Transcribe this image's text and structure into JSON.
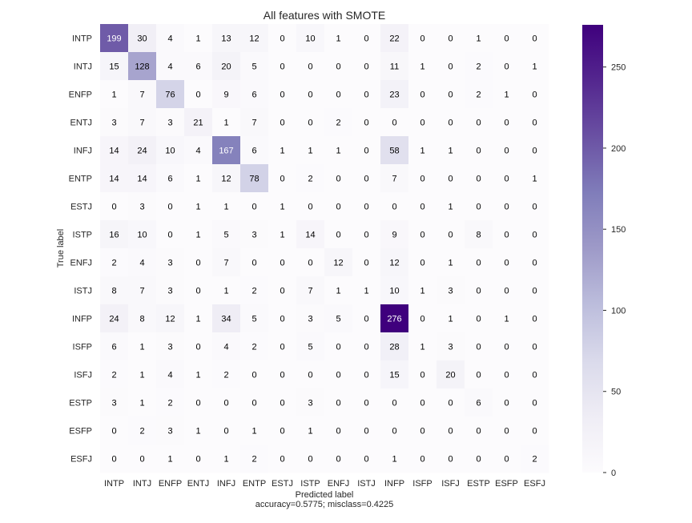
{
  "chart_data": {
    "type": "heatmap",
    "title": "All features with SMOTE",
    "xlabel": "Predicted label",
    "xlabel_sub": "accuracy=0.5775; misclass=0.4225",
    "ylabel": "True label",
    "x_categories": [
      "INTP",
      "INTJ",
      "ENFP",
      "ENTJ",
      "INFJ",
      "ENTP",
      "ESTJ",
      "ISTP",
      "ENFJ",
      "ISTJ",
      "INFP",
      "ISFP",
      "ISFJ",
      "ESTP",
      "ESFP",
      "ESFJ"
    ],
    "y_categories": [
      "INTP",
      "INTJ",
      "ENFP",
      "ENTJ",
      "INFJ",
      "ENTP",
      "ESTJ",
      "ISTP",
      "ENFJ",
      "ISTJ",
      "INFP",
      "ISFP",
      "ISFJ",
      "ESTP",
      "ESFP",
      "ESFJ"
    ],
    "values": [
      [
        199,
        30,
        4,
        1,
        13,
        12,
        0,
        10,
        1,
        0,
        22,
        0,
        0,
        1,
        0,
        0
      ],
      [
        15,
        128,
        4,
        6,
        20,
        5,
        0,
        0,
        0,
        0,
        11,
        1,
        0,
        2,
        0,
        1
      ],
      [
        1,
        7,
        76,
        0,
        9,
        6,
        0,
        0,
        0,
        0,
        23,
        0,
        0,
        2,
        1,
        0
      ],
      [
        3,
        7,
        3,
        21,
        1,
        7,
        0,
        0,
        2,
        0,
        0,
        0,
        0,
        0,
        0,
        0
      ],
      [
        14,
        24,
        10,
        4,
        167,
        6,
        1,
        1,
        1,
        0,
        58,
        1,
        1,
        0,
        0,
        0
      ],
      [
        14,
        14,
        6,
        1,
        12,
        78,
        0,
        2,
        0,
        0,
        7,
        0,
        0,
        0,
        0,
        1
      ],
      [
        0,
        3,
        0,
        1,
        1,
        0,
        1,
        0,
        0,
        0,
        0,
        0,
        1,
        0,
        0,
        0
      ],
      [
        16,
        10,
        0,
        1,
        5,
        3,
        1,
        14,
        0,
        0,
        9,
        0,
        0,
        8,
        0,
        0
      ],
      [
        2,
        4,
        3,
        0,
        7,
        0,
        0,
        0,
        12,
        0,
        12,
        0,
        1,
        0,
        0,
        0
      ],
      [
        8,
        7,
        3,
        0,
        1,
        2,
        0,
        7,
        1,
        1,
        10,
        1,
        3,
        0,
        0,
        0
      ],
      [
        24,
        8,
        12,
        1,
        34,
        5,
        0,
        3,
        5,
        0,
        276,
        0,
        1,
        0,
        1,
        0
      ],
      [
        6,
        1,
        3,
        0,
        4,
        2,
        0,
        5,
        0,
        0,
        28,
        1,
        3,
        0,
        0,
        0
      ],
      [
        2,
        1,
        4,
        1,
        2,
        0,
        0,
        0,
        0,
        0,
        15,
        0,
        20,
        0,
        0,
        0
      ],
      [
        3,
        1,
        2,
        0,
        0,
        0,
        0,
        3,
        0,
        0,
        0,
        0,
        0,
        6,
        0,
        0
      ],
      [
        0,
        2,
        3,
        1,
        0,
        1,
        0,
        1,
        0,
        0,
        0,
        0,
        0,
        0,
        0,
        0
      ],
      [
        0,
        0,
        1,
        0,
        1,
        2,
        0,
        0,
        0,
        0,
        1,
        0,
        0,
        0,
        0,
        2
      ]
    ],
    "colorbar": {
      "ticks": [
        0,
        50,
        100,
        150,
        200,
        250
      ],
      "range": [
        0,
        276
      ],
      "colormap": "Purples"
    },
    "grid": false
  }
}
